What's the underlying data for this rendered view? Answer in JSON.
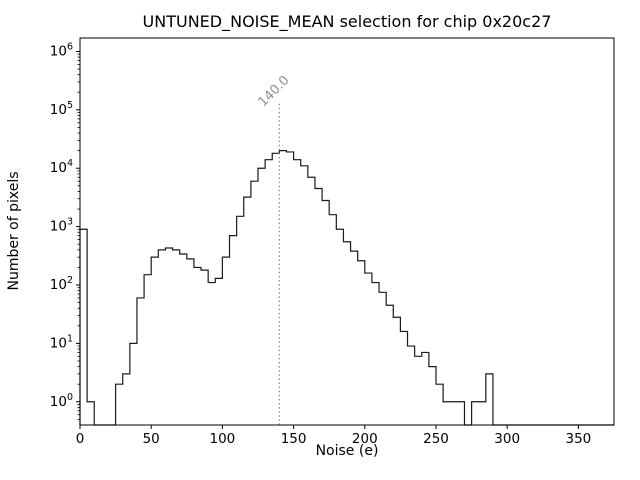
{
  "chart_data": {
    "type": "bar",
    "subtype": "step-histogram",
    "title": "UNTUNED_NOISE_MEAN selection for chip 0x20c27",
    "xlabel": "Noise (e)",
    "ylabel": "Number of pixels",
    "xlim": [
      0,
      375
    ],
    "ylim": [
      0.4,
      1700000
    ],
    "yscale": "log",
    "grid": false,
    "legend": null,
    "x_ticks": [
      0,
      50,
      100,
      150,
      200,
      250,
      300,
      350
    ],
    "y_tick_exponents": [
      0,
      1,
      2,
      3,
      4,
      5,
      6
    ],
    "bin_start": 0,
    "bin_width": 5,
    "counts": [
      900,
      1,
      0,
      0,
      0,
      2,
      3,
      10,
      60,
      150,
      300,
      400,
      430,
      400,
      340,
      280,
      200,
      180,
      110,
      130,
      300,
      700,
      1500,
      3200,
      6000,
      10000,
      14000,
      18000,
      20000,
      19000,
      14000,
      11000,
      7000,
      4500,
      2800,
      1600,
      900,
      550,
      380,
      260,
      160,
      110,
      75,
      45,
      28,
      16,
      9,
      6,
      7,
      4,
      2,
      1,
      1,
      1,
      0,
      1,
      1,
      3,
      0,
      0,
      0,
      0,
      0,
      0,
      0,
      0,
      0,
      0,
      0,
      0,
      0,
      0,
      0,
      0,
      0
    ],
    "line_color": "#1a1a1a",
    "axis_color": "#000000",
    "vline": {
      "x": 140,
      "label": "140.0",
      "color": "#909090",
      "style": "dotted",
      "label_rotation_deg": -45
    }
  }
}
